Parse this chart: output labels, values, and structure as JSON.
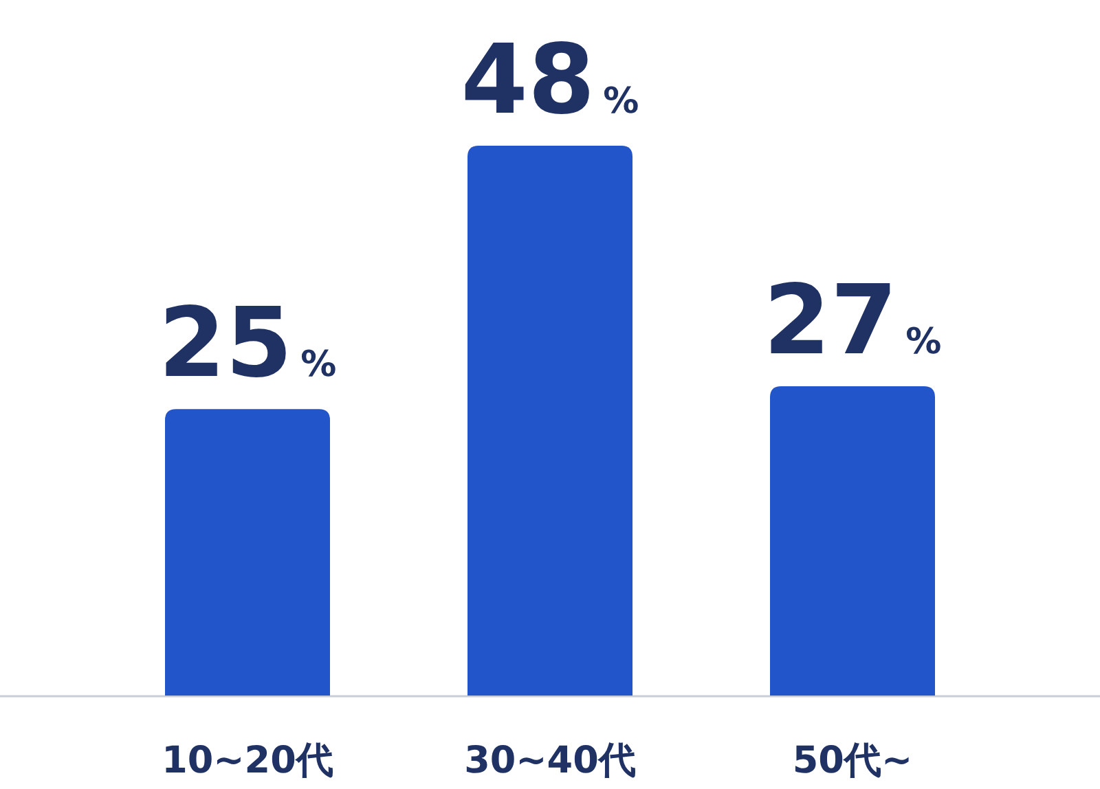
{
  "chart_data": {
    "type": "bar",
    "categories": [
      "10~20代",
      "30~40代",
      "50代~"
    ],
    "values": [
      25,
      48,
      27
    ],
    "color": "#2155c9",
    "value_labels": [
      "25%",
      "48%",
      "27%"
    ]
  }
}
